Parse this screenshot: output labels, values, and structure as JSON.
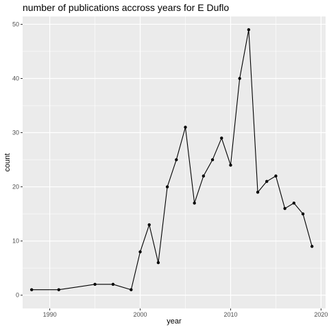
{
  "chart_data": {
    "type": "line",
    "title": "number of publications accross years for E Duflo",
    "xlabel": "year",
    "ylabel": "count",
    "xlim": [
      1987,
      2020.5
    ],
    "ylim": [
      -2.45,
      51.45
    ],
    "x_ticks": [
      1990,
      2000,
      2010,
      2020
    ],
    "x_tick_labels": [
      "1990",
      "2000",
      "2010",
      "2020"
    ],
    "y_ticks": [
      0,
      10,
      20,
      30,
      40,
      50
    ],
    "y_tick_labels": [
      "0",
      "10",
      "20",
      "30",
      "40",
      "50"
    ],
    "grid": true,
    "legend": "none",
    "colors": {
      "panel_background": "#ebebeb",
      "grid_major": "#ffffff",
      "line": "#000000",
      "points": "#000000",
      "tick_label": "#4d4d4d"
    },
    "series": [
      {
        "x": [
          1988,
          1991,
          1995,
          1997,
          1999,
          2000,
          2001,
          2002,
          2003,
          2004,
          2005,
          2006,
          2007,
          2008,
          2009,
          2010,
          2011,
          2012,
          2013,
          2014,
          2015,
          2016,
          2017,
          2018,
          2019
        ],
        "values": [
          1,
          1,
          2,
          2,
          1,
          8,
          13,
          6,
          20,
          25,
          31,
          17,
          22,
          25,
          29,
          24,
          40,
          49,
          19,
          21,
          22,
          16,
          17,
          15,
          9
        ]
      }
    ]
  }
}
